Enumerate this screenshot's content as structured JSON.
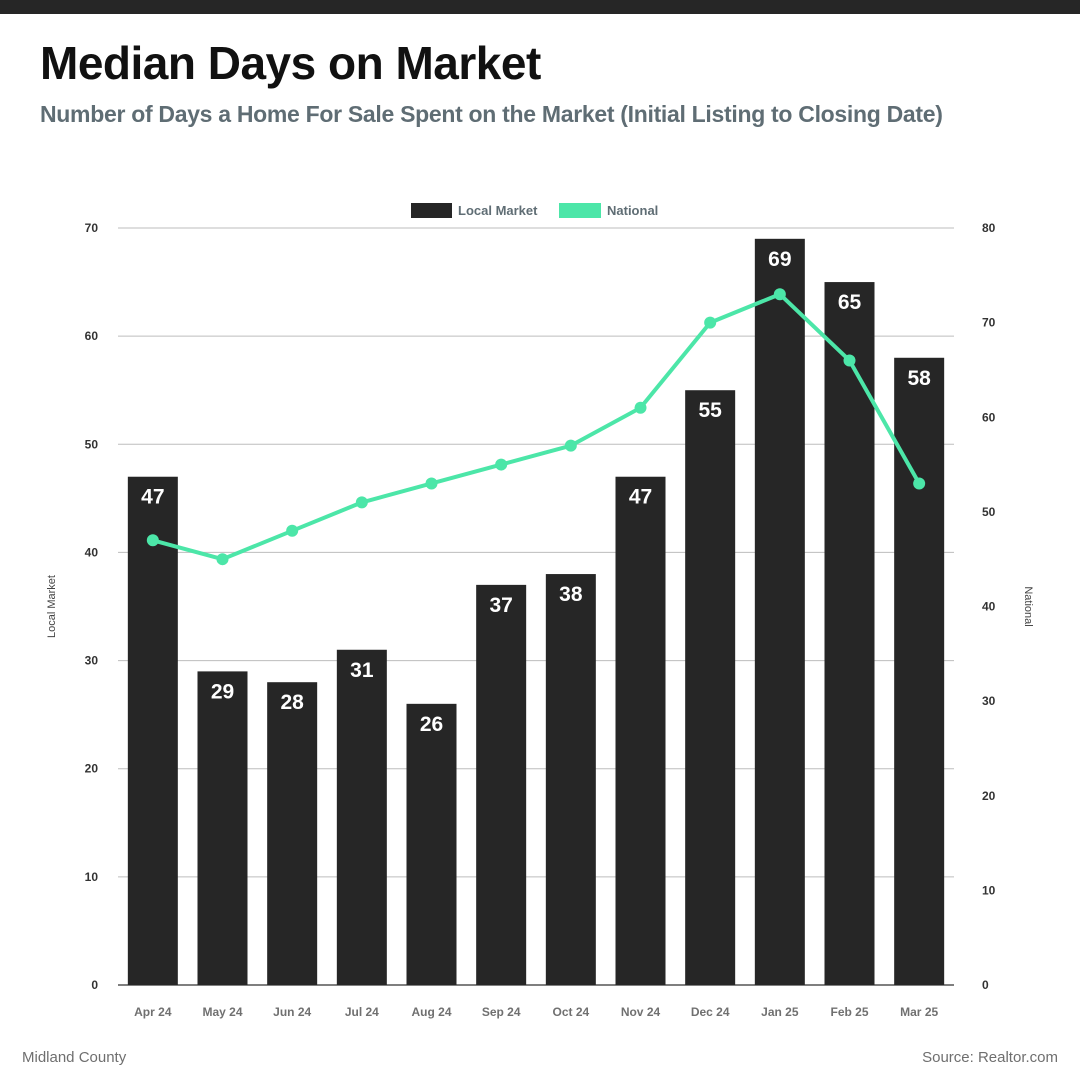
{
  "title": "Median Days on Market",
  "subtitle": "Number of Days a Home For Sale Spent on the Market (Initial Listing to Closing Date)",
  "footer": {
    "left": "Midland County",
    "right": "Source: Realtor.com"
  },
  "colors": {
    "bar": "#262626",
    "line": "#4ce6a8",
    "bar_label": "#ffffff",
    "title": "#111111",
    "subtitle": "#5f6d74",
    "grid": "#bdbdbd"
  },
  "chart_data": {
    "type": "bar",
    "categories": [
      "Apr 24",
      "May 24",
      "Jun 24",
      "Jul 24",
      "Aug 24",
      "Sep 24",
      "Oct 24",
      "Nov 24",
      "Dec 24",
      "Jan 25",
      "Feb 25",
      "Mar 25"
    ],
    "series": [
      {
        "name": "Local Market",
        "type": "bar",
        "axis": "left",
        "values": [
          47,
          29,
          28,
          31,
          26,
          37,
          38,
          47,
          55,
          69,
          65,
          58
        ]
      },
      {
        "name": "National",
        "type": "line",
        "axis": "right",
        "values": [
          47,
          45,
          48,
          51,
          53,
          55,
          57,
          61,
          70,
          73,
          66,
          53
        ]
      }
    ],
    "y_left": {
      "label": "Local Market",
      "ylim": [
        0,
        70
      ],
      "ticks": [
        "0",
        "10",
        "20",
        "30",
        "40",
        "50",
        "60",
        "70"
      ]
    },
    "y_right": {
      "label": "National",
      "ylim": [
        0,
        80
      ],
      "ticks": [
        "0",
        "10",
        "20",
        "30",
        "40",
        "50",
        "60",
        "70",
        "80"
      ]
    },
    "legend": {
      "placement": "top-center"
    },
    "grid": true,
    "data_labels": true
  }
}
